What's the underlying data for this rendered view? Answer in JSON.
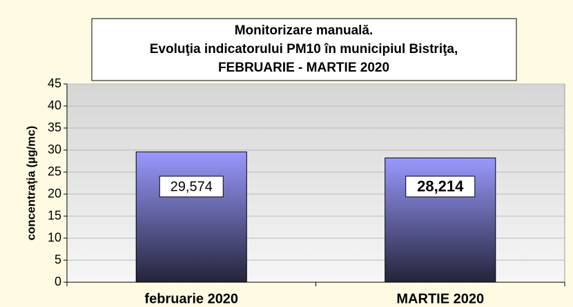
{
  "chart_data": {
    "type": "bar",
    "title": [
      "Monitorizare manuală.",
      "Evoluţia indicatorului PM10 în municipiul Bistriţa,",
      "FEBRUARIE - MARTIE 2020"
    ],
    "y_label": "concentraţia (µg/mc)",
    "categories": [
      "februarie 2020",
      "MARTIE 2020"
    ],
    "values": [
      29.574,
      28.214
    ],
    "value_labels": [
      "29,574",
      "28,214"
    ],
    "color": "#9999ff",
    "ylim": [
      0,
      45
    ],
    "yticks": [
      0,
      5,
      10,
      15,
      20,
      25,
      30,
      35,
      40,
      45
    ],
    "grid": true
  }
}
